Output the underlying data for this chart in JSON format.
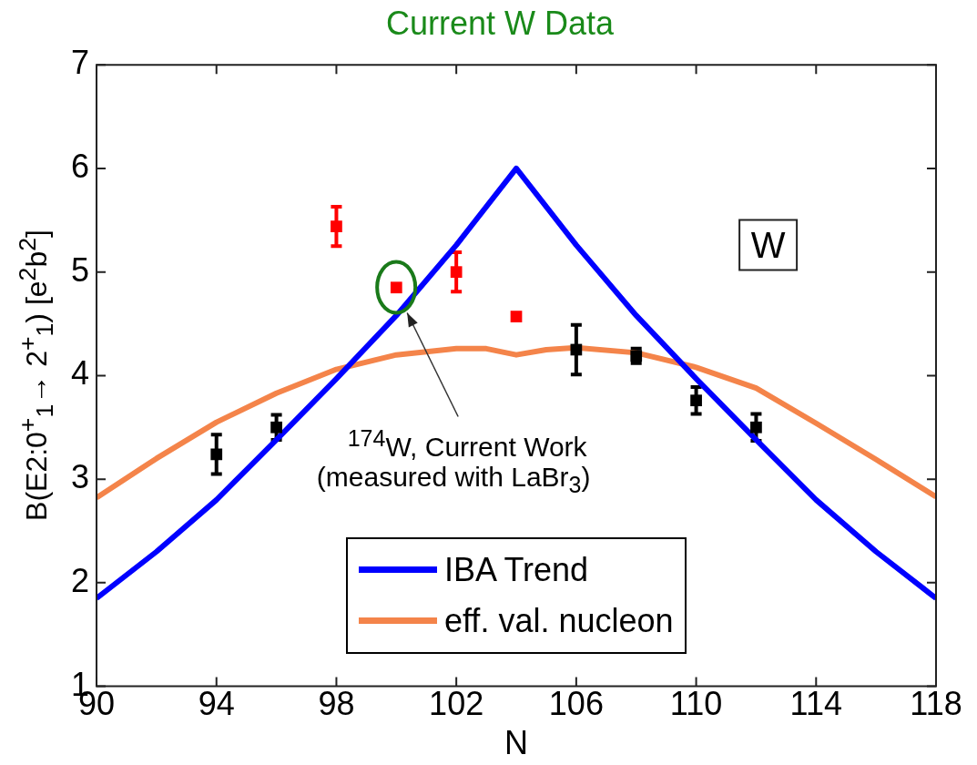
{
  "chart_data": {
    "type": "scatter",
    "title": "Current W Data",
    "xlabel": "N",
    "ylabel": "B(E2:0$^{+}$$_{1}$→ 2$^{+}$$_{1}$) [e$^{2}$b$^{2}$]",
    "xlim": [
      90,
      118
    ],
    "xticks": [
      90,
      94,
      98,
      102,
      106,
      110,
      114,
      118
    ],
    "ylim": [
      1,
      7
    ],
    "yticks": [
      1,
      2,
      3,
      4,
      5,
      6,
      7
    ],
    "grid": false,
    "legend": "bottom",
    "series": [
      {
        "name": "IBA Trend",
        "type": "line",
        "color": "#0000ff",
        "marker": "none",
        "x": [
          90,
          92,
          94,
          96,
          98,
          100,
          102,
          104,
          106,
          108,
          110,
          112,
          114,
          116,
          118
        ],
        "values": [
          1.85,
          2.3,
          2.8,
          3.38,
          3.97,
          4.58,
          5.26,
          6.0,
          5.26,
          4.58,
          3.97,
          3.38,
          2.8,
          2.3,
          1.85
        ]
      },
      {
        "name": "eff. val. nucleon",
        "type": "line",
        "color": "#f4844a",
        "marker": "none",
        "x": [
          90,
          92,
          94,
          96,
          98,
          100,
          102,
          103,
          104,
          105,
          106,
          108,
          110,
          112,
          114,
          116,
          118
        ],
        "values": [
          2.82,
          3.2,
          3.55,
          3.83,
          4.06,
          4.2,
          4.26,
          4.26,
          4.2,
          4.25,
          4.27,
          4.22,
          4.08,
          3.88,
          3.54,
          3.19,
          2.83
        ]
      },
      {
        "color": "#000000",
        "marker": "square",
        "x": [
          94,
          96,
          106,
          108,
          110,
          112
        ],
        "values": [
          3.24,
          3.5,
          4.25,
          4.19,
          3.76,
          3.5
        ],
        "errors": [
          0.19,
          0.12,
          0.24,
          0.07,
          0.13,
          0.13
        ]
      },
      {
        "color": "#ff0000",
        "marker": "square",
        "x": [
          98,
          100,
          102,
          104
        ],
        "values": [
          5.44,
          4.85,
          5.0,
          4.57
        ],
        "errors": [
          0.19,
          null,
          0.19,
          null
        ]
      }
    ],
    "annotations": [
      "W",
      "$^{174}$W, Current Work",
      "(measured with LaBr$_{3}$)"
    ]
  }
}
